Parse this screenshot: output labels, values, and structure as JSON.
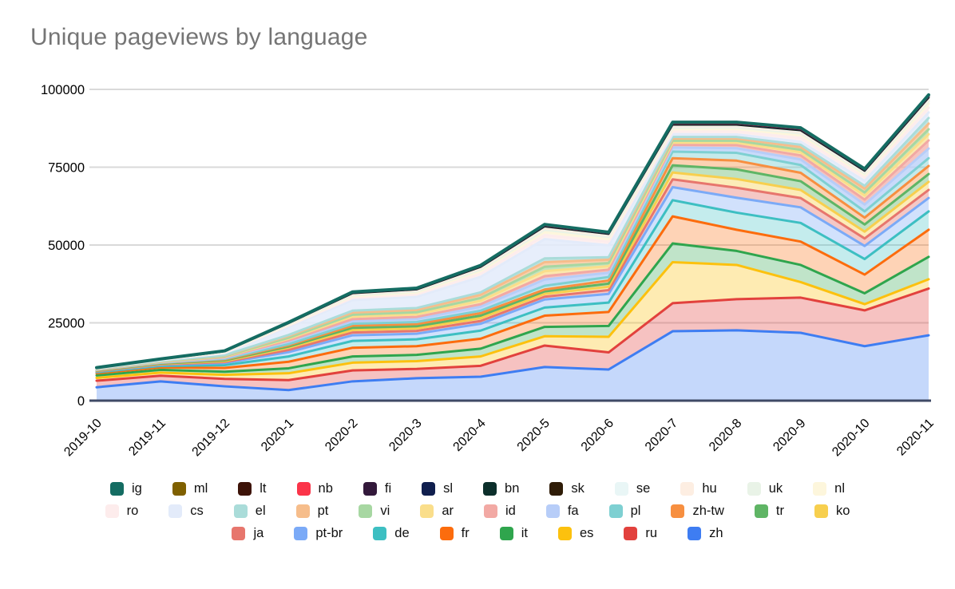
{
  "title": "Unique pageviews by language",
  "styles": {
    "background": "#ffffff",
    "title_color": "#757575",
    "gridline_color": "#d9d9d9",
    "axis_line_color": "#3f4a66",
    "label_color": "#000000"
  },
  "chart_data": {
    "type": "area",
    "stacked": true,
    "title": "Unique pageviews by language",
    "xlabel": "",
    "ylabel": "",
    "ylim": [
      0,
      100000
    ],
    "yticks": [
      0,
      25000,
      50000,
      75000,
      100000
    ],
    "ytick_labels": [
      "0",
      "25000",
      "50000",
      "75000",
      "100000"
    ],
    "grid": true,
    "legend_position": "bottom",
    "categories": [
      "2019-10",
      "2019-11",
      "2019-12",
      "2020-1",
      "2020-2",
      "2020-3",
      "2020-4",
      "2020-5",
      "2020-6",
      "2020-7",
      "2020-8",
      "2020-9",
      "2020-10",
      "2020-11"
    ],
    "series": [
      {
        "name": "zh",
        "color": "#3e7df2",
        "fill_alpha": 0.3,
        "stroke_width": 3,
        "values": [
          4300,
          6200,
          4600,
          3400,
          6200,
          7200,
          7700,
          10800,
          10000,
          22300,
          22600,
          21800,
          17500,
          21000
        ]
      },
      {
        "name": "ru",
        "color": "#e2413d",
        "fill_alpha": 0.32,
        "stroke_width": 3,
        "values": [
          2100,
          1800,
          2400,
          3200,
          3500,
          3000,
          3500,
          6900,
          5500,
          9000,
          10000,
          11300,
          11500,
          15000
        ]
      },
      {
        "name": "es",
        "color": "#fcc10e",
        "fill_alpha": 0.32,
        "stroke_width": 3,
        "values": [
          900,
          1000,
          1300,
          2200,
          2500,
          2500,
          3000,
          3000,
          5000,
          13200,
          11000,
          5000,
          2000,
          3000
        ]
      },
      {
        "name": "it",
        "color": "#2fa54d",
        "fill_alpha": 0.3,
        "stroke_width": 3,
        "values": [
          800,
          900,
          1000,
          1600,
          2000,
          2000,
          2500,
          3000,
          3500,
          6000,
          4500,
          5500,
          3500,
          7200
        ]
      },
      {
        "name": "fr",
        "color": "#fc6c0d",
        "fill_alpha": 0.3,
        "stroke_width": 3,
        "values": [
          700,
          800,
          1200,
          2100,
          2800,
          2800,
          3200,
          3600,
          4500,
          8700,
          6800,
          7500,
          6000,
          8700
        ]
      },
      {
        "name": "de",
        "color": "#3dbfc2",
        "fill_alpha": 0.3,
        "stroke_width": 3,
        "values": [
          350,
          450,
          900,
          1700,
          2200,
          2200,
          2600,
          2600,
          3000,
          5200,
          5500,
          6000,
          5000,
          5900
        ]
      },
      {
        "name": "pt-br",
        "color": "#7baaf7",
        "fill_alpha": 0.35,
        "stroke_width": 3,
        "values": [
          250,
          350,
          700,
          1400,
          1800,
          1800,
          2200,
          2600,
          2800,
          4200,
          4800,
          5000,
          4200,
          4300
        ]
      },
      {
        "name": "ja",
        "color": "#e7766d",
        "fill_alpha": 0.4,
        "stroke_width": 3,
        "values": [
          100,
          150,
          300,
          700,
          900,
          900,
          900,
          900,
          1200,
          2500,
          3200,
          3000,
          2400,
          2600
        ]
      },
      {
        "name": "ko",
        "color": "#f7cf4e",
        "fill_alpha": 0.4,
        "stroke_width": 3,
        "values": [
          100,
          150,
          300,
          700,
          800,
          800,
          900,
          900,
          1100,
          2200,
          2800,
          2600,
          2200,
          2600
        ]
      },
      {
        "name": "tr",
        "color": "#5fb565",
        "fill_alpha": 0.4,
        "stroke_width": 3,
        "values": [
          80,
          120,
          250,
          400,
          700,
          700,
          800,
          800,
          1000,
          2300,
          3100,
          2800,
          2300,
          2500
        ]
      },
      {
        "name": "zh-tw",
        "color": "#f78f40",
        "fill_alpha": 0.4,
        "stroke_width": 3,
        "values": [
          100,
          150,
          250,
          400,
          700,
          700,
          800,
          600,
          1000,
          2300,
          2800,
          2700,
          2200,
          2600
        ]
      },
      {
        "name": "pl",
        "color": "#7ed0d2",
        "fill_alpha": 0.45,
        "stroke_width": 3,
        "values": [
          80,
          120,
          220,
          350,
          600,
          650,
          800,
          1200,
          1100,
          2100,
          2500,
          2500,
          2000,
          2500
        ]
      },
      {
        "name": "fa",
        "color": "#b7cdf8",
        "fill_alpha": 0.75,
        "stroke_width": 3,
        "values": [
          100,
          150,
          300,
          800,
          900,
          1000,
          1300,
          2000,
          1400,
          1300,
          1500,
          1800,
          2200,
          3100
        ]
      },
      {
        "name": "id",
        "color": "#f2a9a4",
        "fill_alpha": 0.7,
        "stroke_width": 3,
        "values": [
          70,
          100,
          200,
          350,
          600,
          650,
          800,
          1100,
          1000,
          900,
          1000,
          1300,
          1600,
          2600
        ]
      },
      {
        "name": "ar",
        "color": "#fade8b",
        "fill_alpha": 0.7,
        "stroke_width": 3,
        "values": [
          70,
          100,
          200,
          600,
          800,
          850,
          1100,
          1600,
          1100,
          700,
          800,
          1000,
          1300,
          2000
        ]
      },
      {
        "name": "vi",
        "color": "#a7d7a2",
        "fill_alpha": 0.7,
        "stroke_width": 3,
        "values": [
          50,
          80,
          150,
          300,
          600,
          650,
          900,
          1400,
          1000,
          600,
          600,
          800,
          1000,
          1600
        ]
      },
      {
        "name": "pt",
        "color": "#f6bd8b",
        "fill_alpha": 0.7,
        "stroke_width": 3,
        "values": [
          60,
          100,
          200,
          600,
          700,
          750,
          1000,
          1500,
          1100,
          700,
          700,
          900,
          1200,
          1800
        ]
      },
      {
        "name": "el",
        "color": "#aadcd9",
        "fill_alpha": 0.75,
        "stroke_width": 3,
        "values": [
          50,
          80,
          150,
          300,
          600,
          600,
          800,
          1200,
          800,
          500,
          500,
          700,
          900,
          1800
        ]
      },
      {
        "name": "cs",
        "color": "#e3ebfa",
        "fill_alpha": 0.85,
        "stroke_width": 3,
        "values": [
          100,
          200,
          600,
          2600,
          3400,
          3600,
          5000,
          6200,
          3800,
          900,
          800,
          1000,
          1600,
          1800
        ]
      },
      {
        "name": "ro",
        "color": "#fdecec",
        "fill_alpha": 0.85,
        "stroke_width": 3,
        "values": [
          60,
          100,
          200,
          400,
          700,
          750,
          1000,
          1300,
          1200,
          900,
          1000,
          1200,
          1100,
          1500
        ]
      },
      {
        "name": "nl",
        "color": "#fdf6dc",
        "fill_alpha": 0.85,
        "stroke_width": 3,
        "values": [
          40,
          70,
          150,
          300,
          550,
          600,
          800,
          1000,
          900,
          700,
          800,
          900,
          800,
          1300
        ]
      },
      {
        "name": "uk",
        "color": "#e9f3e7",
        "fill_alpha": 0.85,
        "stroke_width": 3,
        "values": [
          30,
          50,
          100,
          200,
          350,
          400,
          500,
          700,
          600,
          500,
          500,
          600,
          500,
          800
        ]
      },
      {
        "name": "hu",
        "color": "#fdeee2",
        "fill_alpha": 0.85,
        "stroke_width": 3,
        "values": [
          20,
          40,
          80,
          150,
          300,
          300,
          400,
          500,
          450,
          400,
          400,
          400,
          400,
          500
        ]
      },
      {
        "name": "se",
        "color": "#e9f6f6",
        "fill_alpha": 0.85,
        "stroke_width": 3,
        "values": [
          20,
          30,
          70,
          120,
          250,
          250,
          350,
          450,
          400,
          400,
          300,
          400,
          300,
          500
        ]
      },
      {
        "name": "sk",
        "color": "#2f1c07",
        "fill_alpha": 0.3,
        "stroke_width": 2.5,
        "values": [
          10,
          20,
          30,
          50,
          80,
          80,
          100,
          120,
          100,
          150,
          150,
          150,
          120,
          160
        ]
      },
      {
        "name": "bn",
        "color": "#0c2f2b",
        "fill_alpha": 0.3,
        "stroke_width": 2.5,
        "values": [
          10,
          20,
          30,
          50,
          80,
          80,
          100,
          120,
          100,
          150,
          150,
          150,
          120,
          160
        ]
      },
      {
        "name": "sl",
        "color": "#101f4e",
        "fill_alpha": 0.3,
        "stroke_width": 2.5,
        "values": [
          10,
          10,
          30,
          40,
          70,
          70,
          90,
          100,
          90,
          130,
          130,
          130,
          100,
          140
        ]
      },
      {
        "name": "fi",
        "color": "#33193b",
        "fill_alpha": 0.3,
        "stroke_width": 2.5,
        "values": [
          10,
          10,
          20,
          40,
          60,
          60,
          80,
          100,
          80,
          120,
          120,
          120,
          100,
          130
        ]
      },
      {
        "name": "nb",
        "color": "#fb3449",
        "fill_alpha": 0.3,
        "stroke_width": 2.5,
        "values": [
          10,
          10,
          20,
          30,
          60,
          60,
          70,
          90,
          80,
          110,
          110,
          110,
          90,
          120
        ]
      },
      {
        "name": "lt",
        "color": "#3d1308",
        "fill_alpha": 0.3,
        "stroke_width": 2.5,
        "values": [
          10,
          10,
          20,
          30,
          50,
          50,
          60,
          80,
          70,
          100,
          100,
          100,
          80,
          110
        ]
      },
      {
        "name": "ml",
        "color": "#7f6000",
        "fill_alpha": 0.3,
        "stroke_width": 2.5,
        "values": [
          10,
          10,
          20,
          30,
          50,
          50,
          60,
          80,
          70,
          100,
          100,
          100,
          80,
          110
        ]
      },
      {
        "name": "ig",
        "color": "#146c62",
        "fill_alpha": 0.3,
        "stroke_width": 4,
        "values": [
          10,
          10,
          20,
          30,
          50,
          50,
          60,
          80,
          70,
          100,
          100,
          100,
          80,
          110
        ]
      }
    ],
    "legend_rows": [
      [
        "ig",
        "ml",
        "lt",
        "nb",
        "fi",
        "sl",
        "bn",
        "sk",
        "se",
        "hu",
        "uk",
        "nl"
      ],
      [
        "ro",
        "cs",
        "el",
        "pt",
        "vi",
        "ar",
        "id",
        "fa",
        "pl",
        "zh-tw",
        "tr",
        "ko"
      ],
      [
        "ja",
        "pt-br",
        "de",
        "fr",
        "it",
        "es",
        "ru",
        "zh"
      ]
    ]
  }
}
